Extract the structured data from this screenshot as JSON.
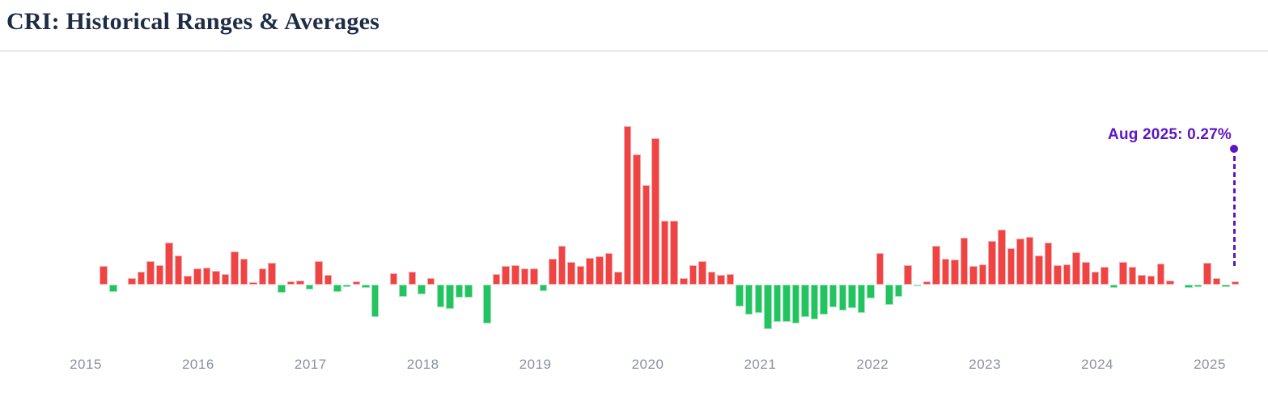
{
  "page": {
    "title": "CRI: Historical Ranges & Averages"
  },
  "colors": {
    "title_color": "#1e2c45",
    "axis_label_color": "#8a919e",
    "positive_bar": "#ef4444",
    "negative_bar": "#23c35f",
    "annotation_purple": "#5c16c5",
    "divider": "#e8e8ea"
  },
  "chart_data": {
    "type": "bar",
    "title": "CRI: Historical Ranges & Averages",
    "unit": "%",
    "x_start": "2015-07",
    "x_freq": "monthly",
    "x_tick_labels": [
      "2015",
      "2016",
      "2017",
      "2018",
      "2019",
      "2020",
      "2021",
      "2022",
      "2023",
      "2024",
      "2025"
    ],
    "ylim": [
      -4,
      14
    ],
    "grid": false,
    "baseline": 0,
    "legend": "none",
    "positive_color": "#ef4444",
    "negative_color": "#23c35f",
    "values": [
      1.55,
      -0.61,
      0,
      0.51,
      1.11,
      1.99,
      1.59,
      3.48,
      2.46,
      0.74,
      1.35,
      1.42,
      1.18,
      0.91,
      2.8,
      2.19,
      0.17,
      1.32,
      1.79,
      -0.68,
      0.24,
      0.37,
      -0.41,
      1.99,
      0.78,
      -0.61,
      -0.17,
      0.24,
      -0.27,
      -2.73,
      0,
      0.95,
      -0.98,
      1.11,
      -0.78,
      0.54,
      -1.86,
      -2.03,
      -1.11,
      -1.11,
      0,
      -3.21,
      0.91,
      1.52,
      1.65,
      1.32,
      1.38,
      -0.57,
      2.13,
      3.24,
      1.89,
      1.52,
      2.23,
      2.33,
      2.63,
      1.11,
      13.2,
      10.9,
      8.3,
      12.25,
      5.3,
      5.33,
      0.51,
      1.65,
      1.99,
      1.11,
      0.84,
      0.88,
      -1.79,
      -2.53,
      -2.36,
      -3.71,
      -3.11,
      -3.11,
      -3.21,
      -2.67,
      -2.87,
      -2.53,
      -1.86,
      -2.19,
      -1.99,
      -2.33,
      -1.18,
      2.63,
      -1.69,
      -1.01,
      1.62,
      -0.14,
      0.24,
      3.21,
      2.13,
      2.06,
      3.92,
      1.55,
      1.72,
      3.65,
      4.62,
      3.07,
      3.88,
      3.98,
      2.46,
      3.54,
      1.59,
      1.69,
      2.7,
      1.86,
      1.11,
      1.49,
      -0.3,
      1.89,
      1.49,
      0.81,
      0.71,
      1.76,
      0.37,
      0,
      -0.3,
      -0.17,
      1.79,
      0.54,
      -0.17,
      0.27
    ],
    "annotation": {
      "text": "Aug 2025: 0.27%",
      "month": "2025-08",
      "value": 0.27,
      "color": "#5c16c5"
    }
  }
}
